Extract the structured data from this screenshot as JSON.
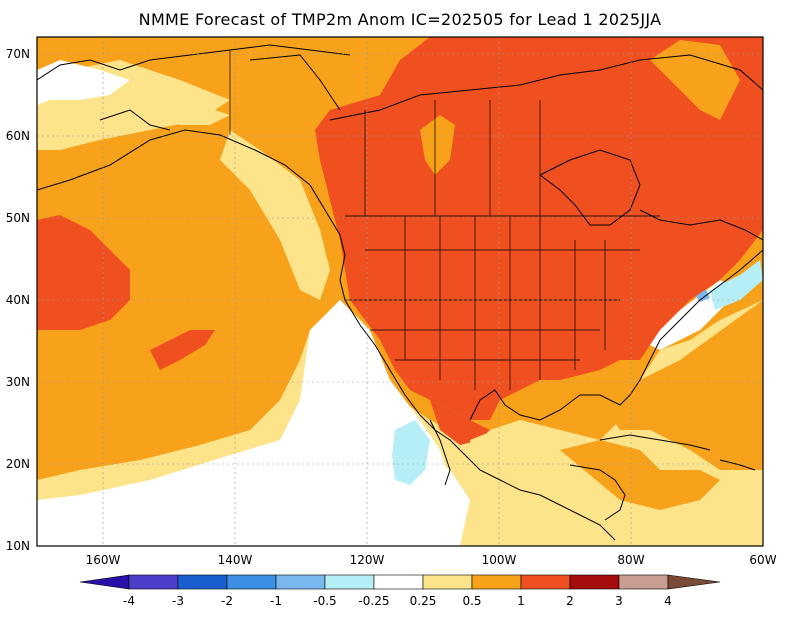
{
  "title": "NMME Forecast of TMP2m Anom IC=202505 for Lead 1 2025JJA",
  "lat_labels": [
    "70N",
    "60N",
    "50N",
    "40N",
    "30N",
    "20N",
    "10N"
  ],
  "lon_labels": [
    "160W",
    "140W",
    "120W",
    "100W",
    "80W",
    "60W"
  ],
  "colorbar": {
    "ticks": [
      "-4",
      "-3",
      "-2",
      "-1",
      "-0.5",
      "-0.25",
      "0.25",
      "0.5",
      "1",
      "2",
      "3",
      "4"
    ],
    "colors": {
      "lt_-4": "#2a0fa8",
      "-4_-3": "#4b3fc9",
      "-3_-2": "#1a5fd0",
      "-2_-1": "#3d8fe6",
      "-1_-0.5": "#79b8ee",
      "-0.5_-0.25": "#b5eef5",
      "-0.25_0.25": "#ffffff",
      "0.25_0.5": "#fde38a",
      "0.5_1": "#f7a21a",
      "1_2": "#f05020",
      "2_3": "#a50c0c",
      "3_4": "#c89e92",
      "gt_4": "#7a4a36"
    }
  }
}
